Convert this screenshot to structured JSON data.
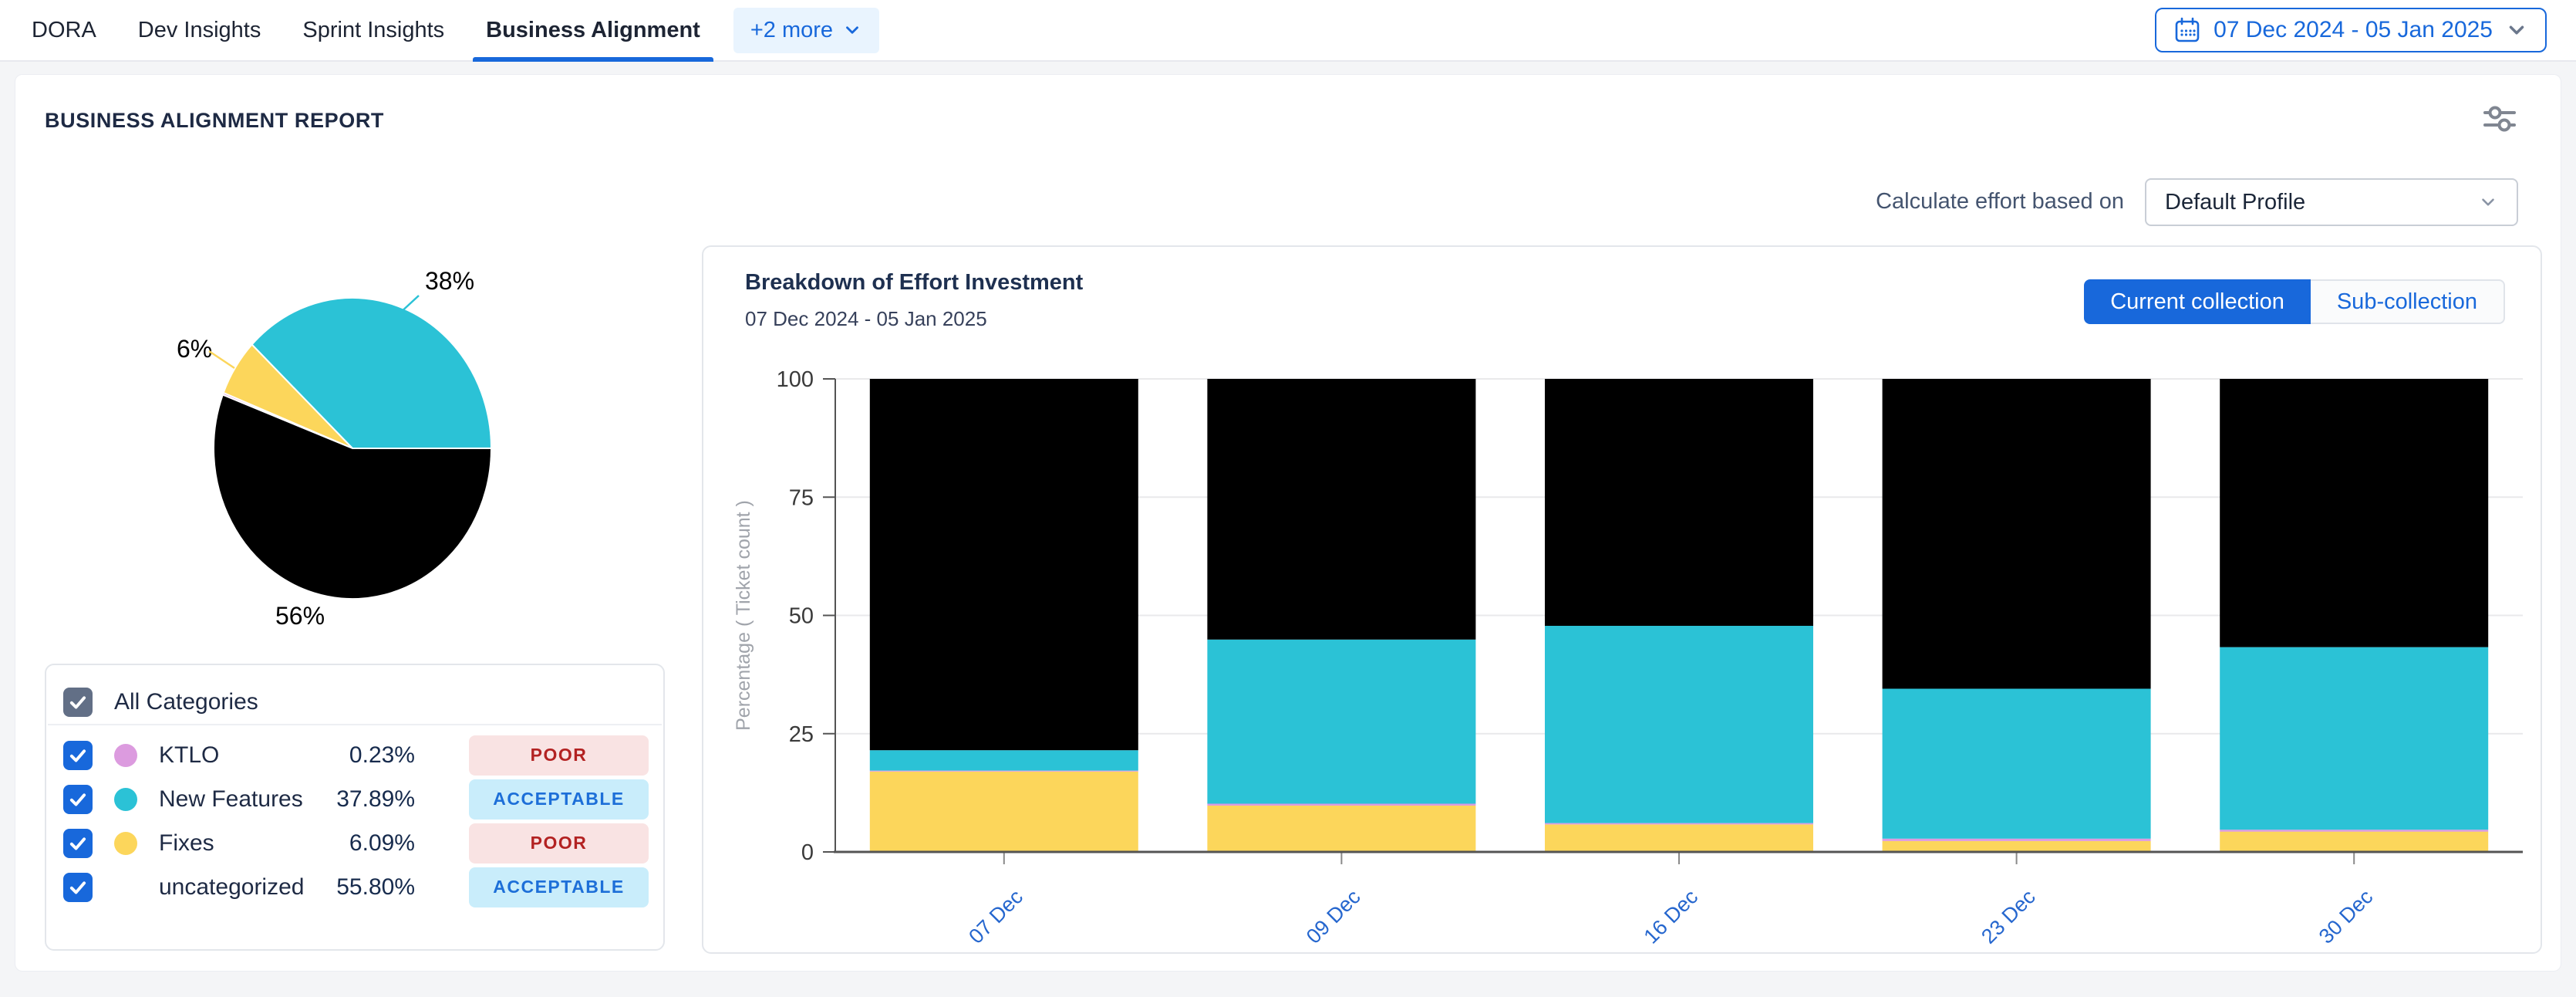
{
  "nav": {
    "tabs": [
      {
        "label": "DORA",
        "active": false
      },
      {
        "label": "Dev Insights",
        "active": false
      },
      {
        "label": "Sprint Insights",
        "active": false
      },
      {
        "label": "Business Alignment",
        "active": true
      }
    ],
    "more_label": "+2 more",
    "date_range": "07 Dec 2024 - 05 Jan 2025"
  },
  "report": {
    "title": "BUSINESS ALIGNMENT REPORT",
    "effort_label": "Calculate effort based on",
    "profile_value": "Default Profile"
  },
  "categories": {
    "header": "All Categories",
    "rows": [
      {
        "name": "KTLO",
        "pct": "0.23%",
        "status": "POOR",
        "color": "#DC9BDF"
      },
      {
        "name": "New Features",
        "pct": "37.89%",
        "status": "ACCEPTABLE",
        "color": "#2BC2D6"
      },
      {
        "name": "Fixes",
        "pct": "6.09%",
        "status": "POOR",
        "color": "#FCD65B"
      },
      {
        "name": "uncategorized",
        "pct": "55.80%",
        "status": "ACCEPTABLE",
        "color": null
      }
    ],
    "status_styles": {
      "POOR": {
        "bg": "#F9E3E3",
        "text": "#B32222"
      },
      "ACCEPTABLE": {
        "bg": "#C9EDFB",
        "text": "#1D6FD8"
      }
    }
  },
  "effort_chart": {
    "title": "Breakdown of Effort Investment",
    "subtitle": "07 Dec 2024 - 05 Jan 2025",
    "buttons": [
      {
        "label": "Current collection",
        "active": true
      },
      {
        "label": "Sub-collection",
        "active": false
      }
    ]
  },
  "icons": {
    "date_picker": "calendar-icon",
    "settings": "sliders-icon",
    "dropdowns": "chevron-down-icon",
    "checkboxes": "check-icon"
  },
  "colors": {
    "accent": "#1868DB",
    "chip_bg": "#E9F4FE",
    "checkbox_blue": "#1868DB",
    "checkbox_slate": "#626F86",
    "axis_line": "#545454",
    "x_label_blue": "#2566CE"
  },
  "chart_data": [
    {
      "type": "pie",
      "slices": [
        {
          "name": "New Features",
          "value": 37.89,
          "label": "38%",
          "color": "#2BC2D6"
        },
        {
          "name": "Fixes",
          "value": 6.09,
          "label": "6%",
          "color": "#FCD65B"
        },
        {
          "name": "KTLO",
          "value": 0.23,
          "label": "",
          "color": "#DC9BDF"
        },
        {
          "name": "uncategorized",
          "value": 55.8,
          "label": "56%",
          "color": "#000000"
        }
      ],
      "start_angle_deg": 0,
      "direction": "counterclockwise"
    },
    {
      "type": "bar",
      "stacked": true,
      "categories": [
        "07 Dec",
        "09 Dec",
        "16 Dec",
        "23 Dec",
        "30 Dec"
      ],
      "series": [
        {
          "name": "Fixes",
          "color": "#FCD65B",
          "values": [
            17.0,
            9.8,
            5.8,
            2.3,
            4.3
          ]
        },
        {
          "name": "KTLO",
          "color": "#DC9BDF",
          "values": [
            0.2,
            0.4,
            0.3,
            0.5,
            0.4
          ]
        },
        {
          "name": "New Features",
          "color": "#2BC2D6",
          "values": [
            4.3,
            34.7,
            41.7,
            31.7,
            38.6
          ]
        },
        {
          "name": "uncategorized",
          "color": "#000000",
          "values": [
            78.5,
            55.1,
            52.2,
            65.5,
            56.7
          ]
        }
      ],
      "ylabel": "Percentage ( Ticket count )",
      "yticks": [
        0,
        25,
        50,
        75,
        100
      ],
      "ylim": [
        0,
        100
      ],
      "grid": true,
      "legend": false
    }
  ]
}
